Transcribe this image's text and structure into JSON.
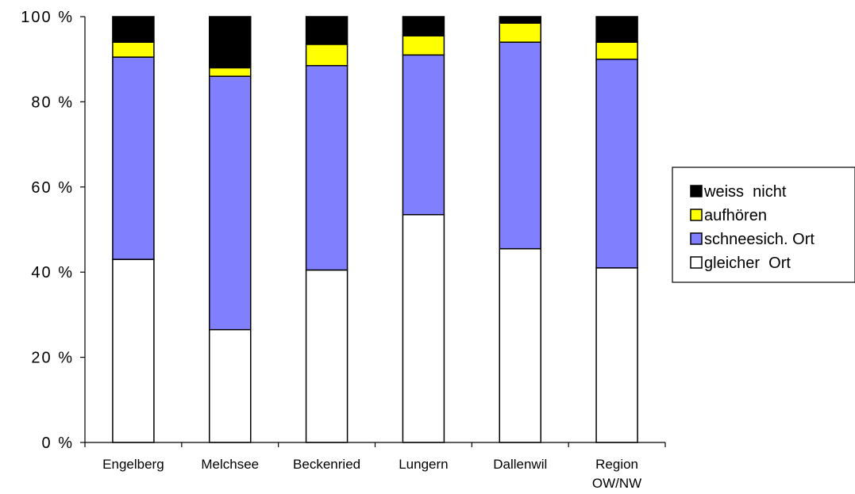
{
  "chart_data": {
    "type": "bar",
    "stacked": true,
    "percent_stacked": true,
    "title": "",
    "xlabel": "",
    "ylabel": "",
    "ylim": [
      0,
      100
    ],
    "y_ticks": [
      "0 %",
      "20 %",
      "40 %",
      "60 %",
      "80 %",
      "100 %"
    ],
    "y_tick_values": [
      0,
      20,
      40,
      60,
      80,
      100
    ],
    "grid": false,
    "legend_position": "right",
    "categories": [
      [
        "Engelberg"
      ],
      [
        "Melchsee"
      ],
      [
        "Beckenried"
      ],
      [
        "Lungern"
      ],
      [
        "Dallenwil"
      ],
      [
        "Region",
        "OW/NW"
      ]
    ],
    "series": [
      {
        "name": "gleicher  Ort",
        "color": "#ffffff",
        "values": [
          43,
          26.5,
          40.5,
          53.5,
          45.5,
          41
        ]
      },
      {
        "name": "schneesich. Ort",
        "color": "#8080ff",
        "values": [
          47.5,
          59.5,
          48,
          37.5,
          48.5,
          49
        ]
      },
      {
        "name": "aufhören",
        "color": "#ffff00",
        "values": [
          3.5,
          2,
          5,
          4.5,
          4.5,
          4
        ]
      },
      {
        "name": "weiss  nicht",
        "color": "#000000",
        "values": [
          6,
          12,
          6.5,
          4.5,
          1.5,
          6
        ]
      }
    ],
    "legend_order": [
      3,
      2,
      1,
      0
    ]
  }
}
